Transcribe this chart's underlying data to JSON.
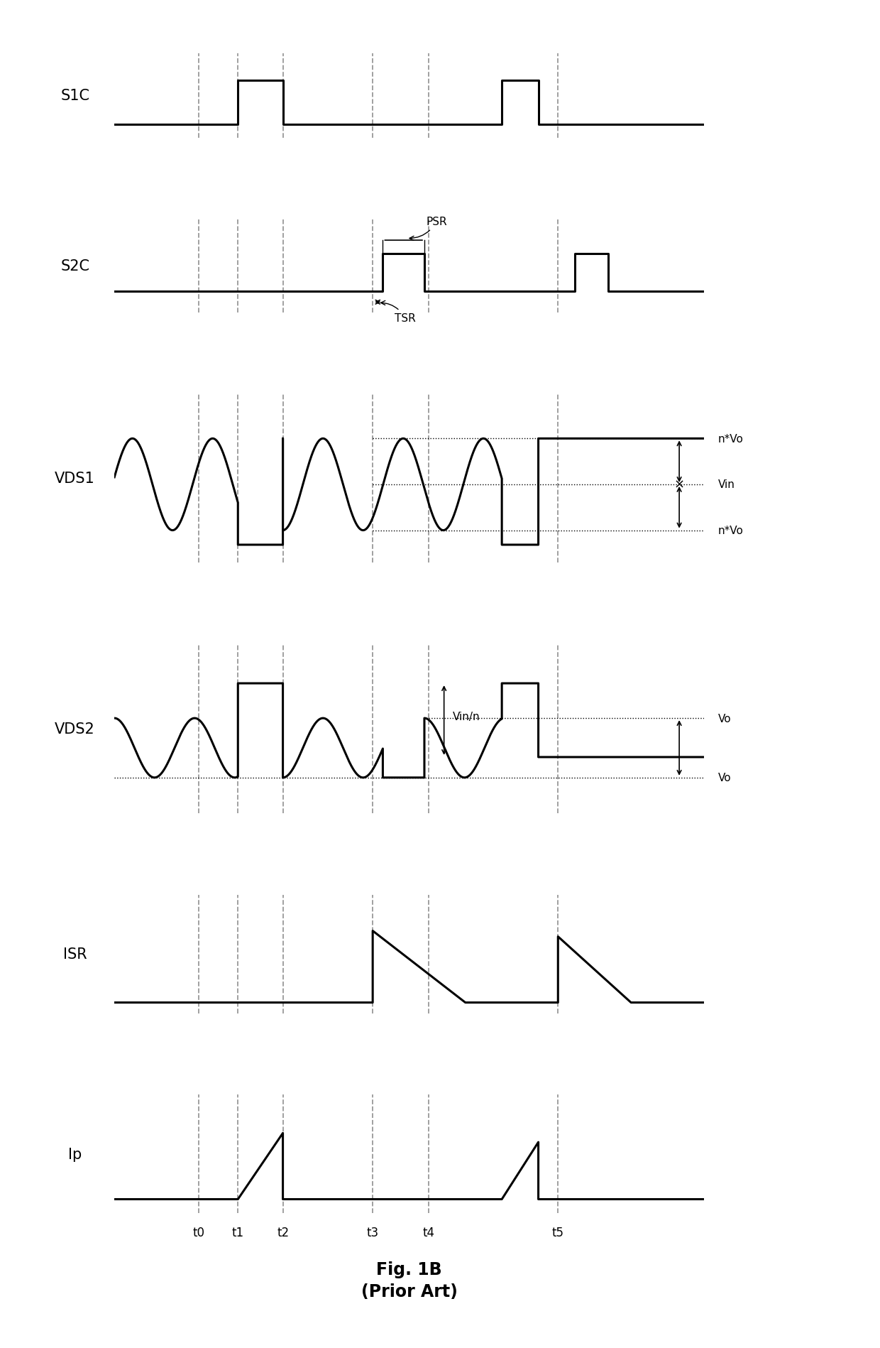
{
  "fig_width": 12.4,
  "fig_height": 18.99,
  "background_color": "#ffffff",
  "signal_labels": [
    "S1C",
    "S2C",
    "VDS1",
    "VDS2",
    "ISR",
    "Ip"
  ],
  "t0": 0.15,
  "t1": 0.22,
  "t2": 0.3,
  "t3": 0.46,
  "t4": 0.56,
  "t5": 0.79,
  "T": 1.05,
  "title": "Fig. 1B",
  "subtitle": "(Prior Art)",
  "lw": 2.2,
  "lw_dash": 1.3,
  "dash_color": "#999999"
}
